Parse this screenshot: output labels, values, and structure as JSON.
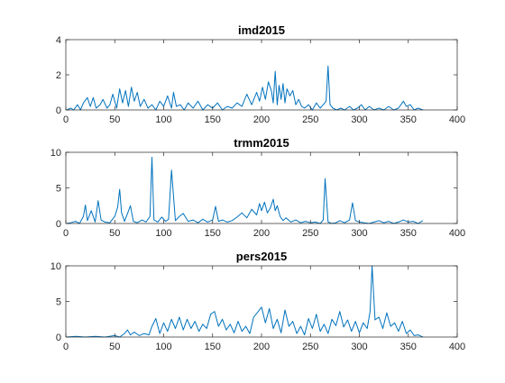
{
  "chart_data": [
    {
      "type": "line",
      "title": "imd2015",
      "xlabel": "",
      "ylabel": "",
      "xlim": [
        0,
        400
      ],
      "ylim": [
        0,
        4
      ],
      "xticks": [
        0,
        50,
        100,
        150,
        200,
        250,
        300,
        350,
        400
      ],
      "yticks": [
        0,
        2,
        4
      ],
      "grid": false,
      "line_color": "#0072BD",
      "series": [
        {
          "x": [
            1,
            5,
            8,
            12,
            15,
            18,
            22,
            25,
            28,
            31,
            35,
            38,
            42,
            45,
            48,
            52,
            55,
            58,
            61,
            64,
            67,
            70,
            73,
            76,
            80,
            84,
            88,
            92,
            96,
            100,
            104,
            108,
            110,
            113,
            117,
            121,
            125,
            130,
            135,
            140,
            145,
            150,
            155,
            160,
            165,
            170,
            175,
            180,
            185,
            190,
            195,
            198,
            201,
            204,
            207,
            210,
            212,
            214,
            216,
            218,
            220,
            222,
            224,
            226,
            229,
            232,
            235,
            238,
            241,
            244,
            248,
            252,
            256,
            260,
            263,
            266,
            268,
            270,
            273,
            277,
            281,
            285,
            290,
            294,
            298,
            302,
            306,
            310,
            315,
            320,
            325,
            330,
            335,
            340,
            345,
            348,
            352,
            356,
            360,
            365
          ],
          "y": [
            0.0,
            0.1,
            0.0,
            0.3,
            0.0,
            0.4,
            0.7,
            0.2,
            0.7,
            0.1,
            0.3,
            0.6,
            0.1,
            0.3,
            0.9,
            0.1,
            1.2,
            0.4,
            1.1,
            0.2,
            1.3,
            0.5,
            1.0,
            0.2,
            0.6,
            0.1,
            0.3,
            0.0,
            0.5,
            0.2,
            0.8,
            0.1,
            1.0,
            0.2,
            0.3,
            0.0,
            0.4,
            0.1,
            0.5,
            0.0,
            0.3,
            0.1,
            0.4,
            0.0,
            0.2,
            0.1,
            0.4,
            0.2,
            0.9,
            0.3,
            1.0,
            0.5,
            1.3,
            0.6,
            1.6,
            1.1,
            0.4,
            2.2,
            0.3,
            1.4,
            0.6,
            1.5,
            0.4,
            1.2,
            0.8,
            1.1,
            0.3,
            0.6,
            0.2,
            0.1,
            0.3,
            0.0,
            0.4,
            0.1,
            0.3,
            0.5,
            2.5,
            0.3,
            0.1,
            0.0,
            0.1,
            0.0,
            0.2,
            0.0,
            0.1,
            0.3,
            0.0,
            0.2,
            0.0,
            0.1,
            0.0,
            0.2,
            0.0,
            0.1,
            0.5,
            0.2,
            0.3,
            0.0,
            0.1,
            0.0
          ]
        }
      ]
    },
    {
      "type": "line",
      "title": "trmm2015",
      "xlabel": "",
      "ylabel": "",
      "xlim": [
        0,
        400
      ],
      "ylim": [
        0,
        10
      ],
      "xticks": [
        0,
        50,
        100,
        150,
        200,
        250,
        300,
        350,
        400
      ],
      "yticks": [
        0,
        5,
        10
      ],
      "grid": false,
      "line_color": "#0072BD",
      "series": [
        {
          "x": [
            1,
            5,
            10,
            14,
            18,
            20,
            22,
            26,
            30,
            33,
            36,
            40,
            45,
            50,
            53,
            55,
            57,
            60,
            63,
            66,
            69,
            73,
            78,
            82,
            86,
            88,
            90,
            94,
            98,
            102,
            105,
            108,
            112,
            116,
            120,
            125,
            130,
            135,
            140,
            145,
            150,
            153,
            156,
            160,
            165,
            170,
            175,
            180,
            185,
            190,
            195,
            198,
            200,
            203,
            206,
            209,
            212,
            214,
            216,
            219,
            222,
            225,
            230,
            235,
            240,
            245,
            250,
            255,
            260,
            263,
            265,
            268,
            272,
            276,
            280,
            285,
            290,
            293,
            296,
            300,
            305,
            310,
            315,
            320,
            325,
            330,
            335,
            340,
            345,
            350,
            355,
            360,
            365
          ],
          "y": [
            0.0,
            0.1,
            0.3,
            0.0,
            1.0,
            2.6,
            0.4,
            1.8,
            0.2,
            3.2,
            0.5,
            0.2,
            0.1,
            1.0,
            2.3,
            4.8,
            1.5,
            0.3,
            1.4,
            2.5,
            0.3,
            0.1,
            0.5,
            0.2,
            1.0,
            9.3,
            0.5,
            0.2,
            0.9,
            0.3,
            0.6,
            7.5,
            0.4,
            1.0,
            1.4,
            0.3,
            0.5,
            0.1,
            0.6,
            0.2,
            0.5,
            2.4,
            0.3,
            0.5,
            0.2,
            0.4,
            0.9,
            1.5,
            0.8,
            2.0,
            1.2,
            2.8,
            1.8,
            3.0,
            1.5,
            2.2,
            3.4,
            1.8,
            2.5,
            1.0,
            0.4,
            0.8,
            0.2,
            0.5,
            0.1,
            0.3,
            0.1,
            0.2,
            0.0,
            0.5,
            6.3,
            0.2,
            0.0,
            0.1,
            0.4,
            0.1,
            0.5,
            2.9,
            0.4,
            0.2,
            0.1,
            0.0,
            0.2,
            0.4,
            0.1,
            0.3,
            0.0,
            0.2,
            0.5,
            0.2,
            0.3,
            0.0,
            0.4
          ]
        }
      ]
    },
    {
      "type": "line",
      "title": "pers2015",
      "xlabel": "",
      "ylabel": "",
      "xlim": [
        0,
        400
      ],
      "ylim": [
        0,
        10
      ],
      "xticks": [
        0,
        50,
        100,
        150,
        200,
        250,
        300,
        350,
        400
      ],
      "yticks": [
        0,
        5,
        10
      ],
      "grid": false,
      "line_color": "#0072BD",
      "series": [
        {
          "x": [
            1,
            10,
            20,
            30,
            40,
            50,
            55,
            60,
            63,
            66,
            70,
            75,
            80,
            85,
            88,
            92,
            96,
            100,
            104,
            108,
            112,
            116,
            120,
            124,
            128,
            132,
            136,
            140,
            144,
            148,
            152,
            156,
            160,
            164,
            168,
            172,
            176,
            180,
            184,
            188,
            192,
            196,
            200,
            204,
            208,
            212,
            216,
            220,
            224,
            228,
            232,
            236,
            240,
            244,
            248,
            252,
            256,
            260,
            264,
            268,
            272,
            276,
            280,
            284,
            288,
            292,
            296,
            300,
            304,
            308,
            311,
            313,
            316,
            320,
            324,
            328,
            332,
            336,
            340,
            344,
            348,
            352,
            356,
            360,
            365
          ],
          "y": [
            0.0,
            0.1,
            0.0,
            0.1,
            0.0,
            0.2,
            0.0,
            0.5,
            1.0,
            0.3,
            0.7,
            0.2,
            0.5,
            0.3,
            1.5,
            2.6,
            0.5,
            2.0,
            0.8,
            2.5,
            1.2,
            2.8,
            1.0,
            2.5,
            1.2,
            2.2,
            0.8,
            1.8,
            1.2,
            3.2,
            3.6,
            1.5,
            2.5,
            1.0,
            1.8,
            0.6,
            2.2,
            0.8,
            1.5,
            0.5,
            2.8,
            3.5,
            4.2,
            2.0,
            4.0,
            1.2,
            2.5,
            0.6,
            3.8,
            1.5,
            2.2,
            0.5,
            1.5,
            0.3,
            2.6,
            1.2,
            3.2,
            0.8,
            1.8,
            0.5,
            2.5,
            1.6,
            3.6,
            1.4,
            2.4,
            0.8,
            2.2,
            0.6,
            2.0,
            1.2,
            3.6,
            10.0,
            2.4,
            2.8,
            1.2,
            3.4,
            1.5,
            2.0,
            0.8,
            2.2,
            0.5,
            1.0,
            0.2,
            0.3,
            0.0
          ]
        }
      ]
    }
  ]
}
